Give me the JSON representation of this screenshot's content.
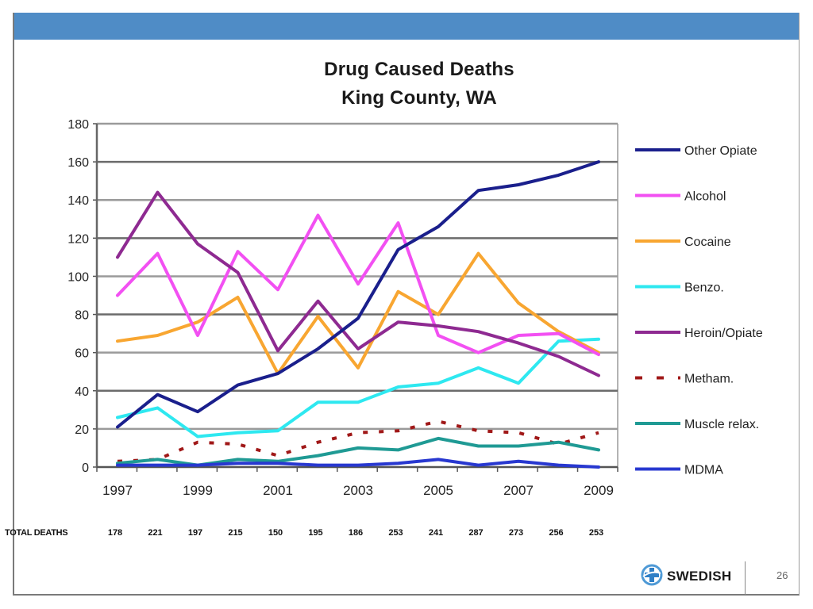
{
  "slide": {
    "page_number": "26",
    "logo_text": "SWEDISH",
    "banner_color": "#4f8cc6"
  },
  "chart_data": {
    "type": "line",
    "title": "Drug Caused Deaths",
    "subtitle": "King County, WA",
    "xlabel": "",
    "ylabel": "",
    "ylim": [
      0,
      180
    ],
    "yticks": [
      0,
      20,
      40,
      60,
      80,
      100,
      120,
      140,
      160,
      180
    ],
    "x": [
      1997,
      1998,
      1999,
      2000,
      2001,
      2002,
      2003,
      2004,
      2005,
      2006,
      2007,
      2008,
      2009
    ],
    "xtick_labels": [
      "1997",
      "1999",
      "2001",
      "2003",
      "2005",
      "2007",
      "2009"
    ],
    "grid": true,
    "legend_position": "right",
    "series": [
      {
        "name": "Other Opiate",
        "color": "#1a1f8c",
        "dashed": false,
        "values": [
          21,
          38,
          29,
          43,
          49,
          62,
          78,
          114,
          126,
          145,
          148,
          153,
          160
        ]
      },
      {
        "name": "Alcohol",
        "color": "#f250f2",
        "dashed": false,
        "values": [
          90,
          112,
          69,
          113,
          93,
          132,
          96,
          128,
          69,
          60,
          69,
          70,
          59
        ]
      },
      {
        "name": "Cocaine",
        "color": "#f8a631",
        "dashed": false,
        "values": [
          66,
          69,
          76,
          89,
          49,
          79,
          52,
          92,
          80,
          112,
          86,
          71,
          60
        ]
      },
      {
        "name": "Benzo.",
        "color": "#2ee8f0",
        "dashed": false,
        "values": [
          26,
          31,
          16,
          18,
          19,
          34,
          34,
          42,
          44,
          52,
          44,
          66,
          67
        ]
      },
      {
        "name": "Heroin/Opiate",
        "color": "#8e2a91",
        "dashed": false,
        "values": [
          110,
          144,
          117,
          102,
          61,
          87,
          62,
          76,
          74,
          71,
          65,
          58,
          48
        ]
      },
      {
        "name": "Metham.",
        "color": "#a01818",
        "dashed": true,
        "values": [
          3,
          4,
          13,
          12,
          6,
          13,
          18,
          19,
          24,
          19,
          18,
          12,
          18
        ]
      },
      {
        "name": "Muscle relax.",
        "color": "#1f9a94",
        "dashed": false,
        "values": [
          2,
          4,
          1,
          4,
          3,
          6,
          10,
          9,
          15,
          11,
          11,
          13,
          9
        ]
      },
      {
        "name": "MDMA",
        "color": "#2838d0",
        "dashed": false,
        "values": [
          1,
          1,
          1,
          2,
          2,
          1,
          1,
          2,
          4,
          1,
          3,
          1,
          0
        ]
      }
    ],
    "totals_label": "TOTAL DEATHS",
    "totals": [
      "178",
      "221",
      "197",
      "215",
      "150",
      "195",
      "186",
      "253",
      "241",
      "287",
      "273",
      "256",
      "253"
    ]
  }
}
